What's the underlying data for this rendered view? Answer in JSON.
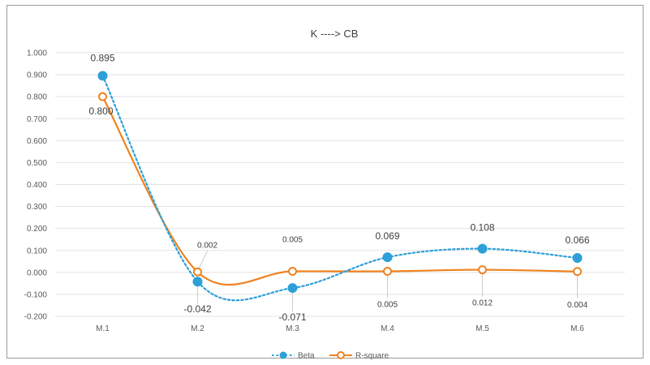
{
  "chart_data": {
    "type": "line",
    "title": "K ----> CB",
    "xlabel": "",
    "ylabel": "",
    "categories": [
      "M.1",
      "M.2",
      "M.3",
      "M.4",
      "M.5",
      "M.6"
    ],
    "ylim": [
      -0.2,
      1.0
    ],
    "yticks": [
      "1.000",
      "0.900",
      "0.800",
      "0.700",
      "0.600",
      "0.500",
      "0.400",
      "0.300",
      "0.200",
      "0.100",
      "0.000",
      "-0.100",
      "-0.200"
    ],
    "grid": true,
    "legend": "bottom",
    "series": [
      {
        "name": "Beta",
        "values": [
          0.895,
          -0.042,
          -0.071,
          0.069,
          0.108,
          0.066
        ],
        "labels": [
          "0.895",
          "-0.042",
          "-0.071",
          "0.069",
          "0.108",
          "0.066"
        ],
        "color": "#2e9fd8",
        "style": "dotted"
      },
      {
        "name": "R-square",
        "values": [
          0.8,
          0.002,
          0.005,
          0.005,
          0.012,
          0.004
        ],
        "labels": [
          "0.800",
          "0.002",
          "0.005",
          "0.005",
          "0.012",
          "0.004"
        ],
        "color": "#f0821e",
        "style": "solid"
      }
    ]
  }
}
